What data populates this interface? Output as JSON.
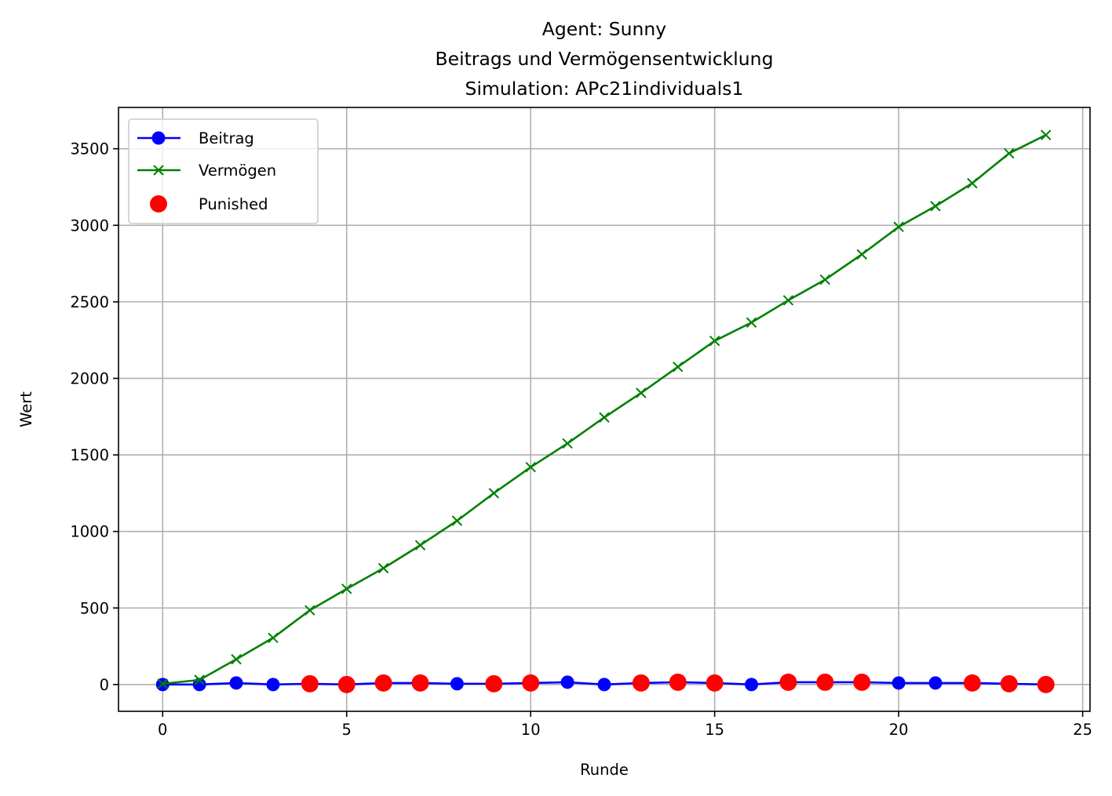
{
  "chart_data": {
    "type": "line",
    "title": [
      "Agent: Sunny",
      "Beitrags und Vermögensentwicklung",
      "Simulation: APc21individuals1"
    ],
    "xlabel": "Runde",
    "ylabel": "Wert",
    "xlim": [
      -1.2,
      25.2
    ],
    "ylim": [
      -175,
      3770
    ],
    "xticks": [
      0,
      5,
      10,
      15,
      20,
      25
    ],
    "yticks": [
      0,
      500,
      1000,
      1500,
      2000,
      2500,
      3000,
      3500
    ],
    "grid": true,
    "legend_position": "top-left",
    "x": [
      0,
      1,
      2,
      3,
      4,
      5,
      6,
      7,
      8,
      9,
      10,
      11,
      12,
      13,
      14,
      15,
      16,
      17,
      18,
      19,
      20,
      21,
      22,
      23,
      24
    ],
    "series": [
      {
        "name": "Beitrag",
        "color": "#0000ff",
        "marker": "circle",
        "values": [
          0,
          0,
          10,
          0,
          5,
          0,
          10,
          10,
          5,
          5,
          10,
          15,
          0,
          10,
          15,
          10,
          0,
          15,
          15,
          15,
          10,
          10,
          10,
          5,
          0
        ]
      },
      {
        "name": "Vermögen",
        "color": "#008000",
        "marker": "x",
        "values": [
          5,
          30,
          165,
          305,
          485,
          625,
          760,
          910,
          1070,
          1250,
          1420,
          1575,
          1745,
          1905,
          2075,
          2245,
          2365,
          2510,
          2645,
          2810,
          2990,
          3125,
          3275,
          3470,
          3590
        ]
      }
    ],
    "punished": {
      "name": "Punished",
      "color": "#ff0000",
      "x": [
        4,
        5,
        6,
        7,
        9,
        10,
        13,
        14,
        15,
        17,
        18,
        19,
        22,
        23,
        24
      ],
      "values": [
        5,
        0,
        10,
        10,
        5,
        10,
        10,
        15,
        10,
        15,
        15,
        15,
        10,
        5,
        0
      ]
    }
  }
}
